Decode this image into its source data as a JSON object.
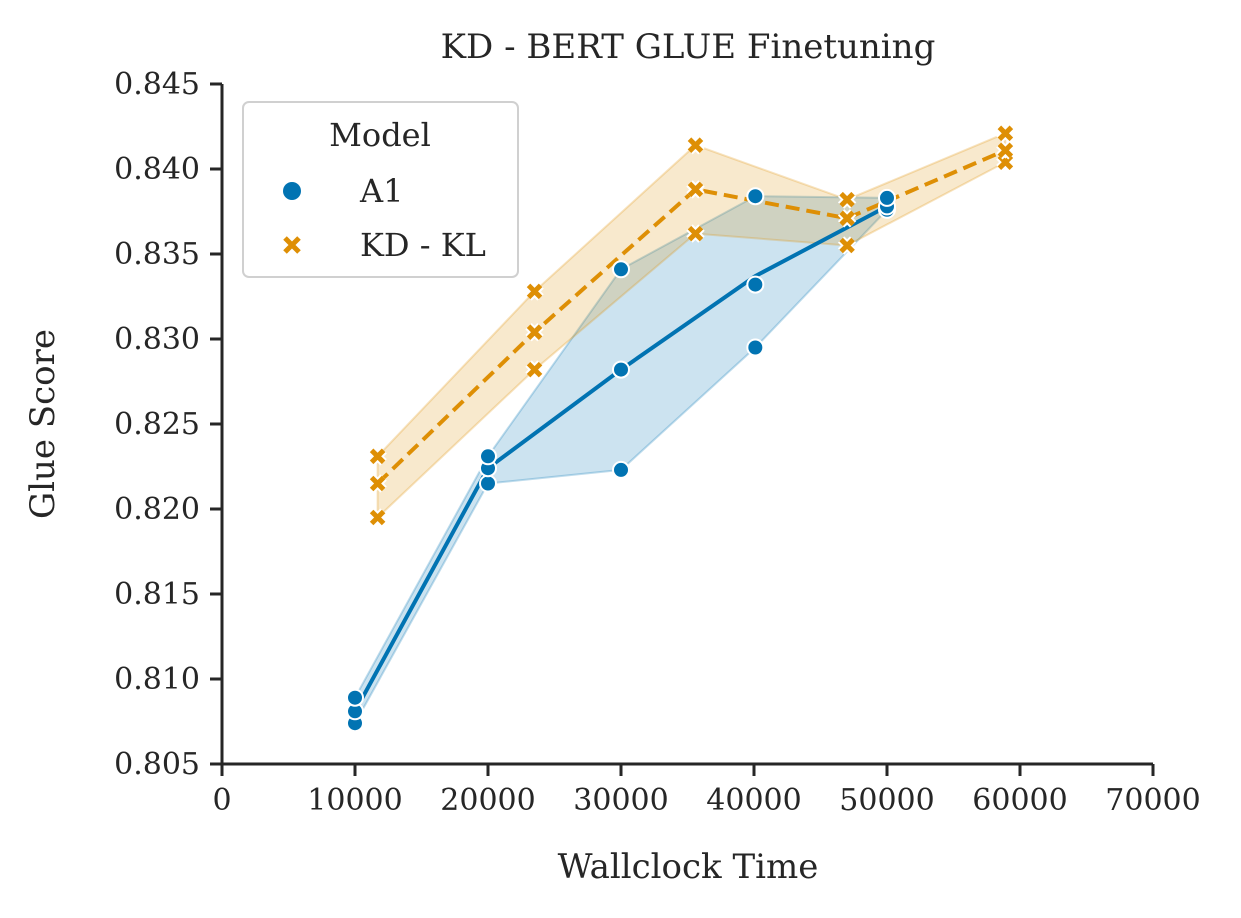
{
  "chart_data": {
    "type": "line",
    "title": "KD - BERT GLUE Finetuning",
    "xlabel": "Wallclock Time",
    "ylabel": "Glue Score",
    "xlim": [
      0,
      70000
    ],
    "ylim": [
      0.805,
      0.845
    ],
    "x_ticks": [
      0,
      10000,
      20000,
      30000,
      40000,
      50000,
      60000,
      70000
    ],
    "x_tick_labels": [
      "0",
      "10000",
      "20000",
      "30000",
      "40000",
      "50000",
      "60000",
      "70000"
    ],
    "y_ticks": [
      0.805,
      0.81,
      0.815,
      0.82,
      0.825,
      0.83,
      0.835,
      0.84,
      0.845
    ],
    "y_tick_labels": [
      "0.805",
      "0.810",
      "0.815",
      "0.820",
      "0.825",
      "0.830",
      "0.835",
      "0.840",
      "0.845"
    ],
    "legend": {
      "title": "Model",
      "position": "top-left"
    },
    "series": [
      {
        "name": "A1",
        "color": "#0173b2",
        "marker": "circle",
        "line_style": "solid",
        "mean": [
          {
            "x": 10000,
            "y": 0.8081
          },
          {
            "x": 20000,
            "y": 0.8224
          },
          {
            "x": 30000,
            "y": 0.8282
          },
          {
            "x": 40100,
            "y": 0.8337
          },
          {
            "x": 50000,
            "y": 0.8378
          }
        ],
        "band": [
          {
            "x": 10000,
            "lo": 0.8074,
            "hi": 0.8089
          },
          {
            "x": 20000,
            "lo": 0.8215,
            "hi": 0.8231
          },
          {
            "x": 30000,
            "lo": 0.8223,
            "hi": 0.8341
          },
          {
            "x": 40100,
            "lo": 0.8295,
            "hi": 0.8384
          },
          {
            "x": 50000,
            "lo": 0.8376,
            "hi": 0.8383
          }
        ],
        "points": [
          {
            "x": 10000,
            "y": 0.8074
          },
          {
            "x": 10000,
            "y": 0.8081
          },
          {
            "x": 10000,
            "y": 0.8089
          },
          {
            "x": 20000,
            "y": 0.8215
          },
          {
            "x": 20000,
            "y": 0.8224
          },
          {
            "x": 20000,
            "y": 0.8231
          },
          {
            "x": 30000,
            "y": 0.8223
          },
          {
            "x": 30000,
            "y": 0.8282
          },
          {
            "x": 30000,
            "y": 0.8341
          },
          {
            "x": 40100,
            "y": 0.8295
          },
          {
            "x": 40100,
            "y": 0.8332
          },
          {
            "x": 40100,
            "y": 0.8384
          },
          {
            "x": 50000,
            "y": 0.8376
          },
          {
            "x": 50000,
            "y": 0.8378
          },
          {
            "x": 50000,
            "y": 0.8383
          }
        ]
      },
      {
        "name": "KD - KL",
        "color": "#de8f05",
        "marker": "x",
        "line_style": "dashed",
        "mean": [
          {
            "x": 11700,
            "y": 0.8215
          },
          {
            "x": 23500,
            "y": 0.8304
          },
          {
            "x": 35600,
            "y": 0.8388
          },
          {
            "x": 47000,
            "y": 0.8371
          },
          {
            "x": 58900,
            "y": 0.8411
          }
        ],
        "band": [
          {
            "x": 11700,
            "lo": 0.8195,
            "hi": 0.8231
          },
          {
            "x": 23500,
            "lo": 0.8282,
            "hi": 0.8328
          },
          {
            "x": 35600,
            "lo": 0.8362,
            "hi": 0.8414
          },
          {
            "x": 47000,
            "lo": 0.8355,
            "hi": 0.8382
          },
          {
            "x": 58900,
            "lo": 0.8404,
            "hi": 0.8421
          }
        ],
        "points": [
          {
            "x": 11700,
            "y": 0.8195
          },
          {
            "x": 11700,
            "y": 0.8215
          },
          {
            "x": 11700,
            "y": 0.8231
          },
          {
            "x": 23500,
            "y": 0.8282
          },
          {
            "x": 23500,
            "y": 0.8304
          },
          {
            "x": 23500,
            "y": 0.8328
          },
          {
            "x": 35600,
            "y": 0.8362
          },
          {
            "x": 35600,
            "y": 0.8388
          },
          {
            "x": 35600,
            "y": 0.8414
          },
          {
            "x": 47000,
            "y": 0.8355
          },
          {
            "x": 47000,
            "y": 0.8371
          },
          {
            "x": 47000,
            "y": 0.8382
          },
          {
            "x": 58900,
            "y": 0.8404
          },
          {
            "x": 58900,
            "y": 0.8411
          },
          {
            "x": 58900,
            "y": 0.8421
          }
        ]
      }
    ]
  }
}
